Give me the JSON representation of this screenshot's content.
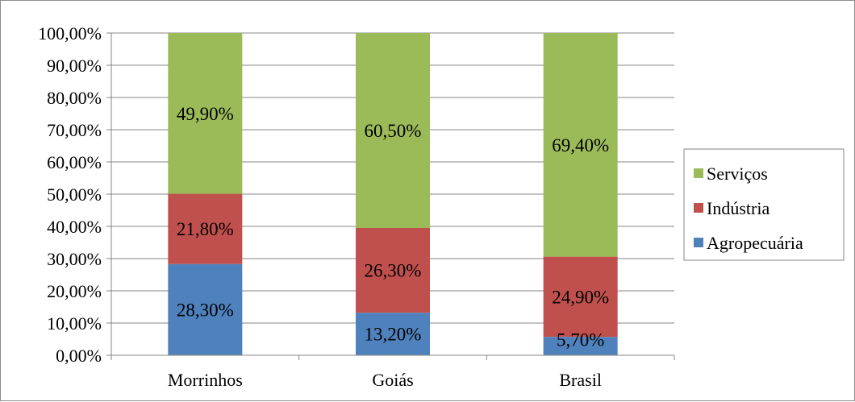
{
  "chart_data": {
    "type": "bar",
    "stacked": true,
    "categories": [
      "Morrinhos",
      "Goiás",
      "Brasil"
    ],
    "series": [
      {
        "name": "Agropecuária",
        "values": [
          28.3,
          13.2,
          5.7
        ],
        "labels": [
          "28,30%",
          "13,20%",
          "5,70%"
        ],
        "color": "#4f81bd"
      },
      {
        "name": "Indústria",
        "values": [
          21.8,
          26.3,
          24.9
        ],
        "labels": [
          "21,80%",
          "26,30%",
          "24,90%"
        ],
        "color": "#c0504d"
      },
      {
        "name": "Serviços",
        "values": [
          49.9,
          60.5,
          69.4
        ],
        "labels": [
          "49,90%",
          "60,50%",
          "69,40%"
        ],
        "color": "#9bbb59"
      }
    ],
    "ylim": [
      0,
      100
    ],
    "yticks": [
      0,
      10,
      20,
      30,
      40,
      50,
      60,
      70,
      80,
      90,
      100
    ],
    "ytick_labels": [
      "0,00%",
      "10,00%",
      "20,00%",
      "30,00%",
      "40,00%",
      "50,00%",
      "60,00%",
      "70,00%",
      "80,00%",
      "90,00%",
      "100,00%"
    ],
    "grid": true,
    "legend_position": "right",
    "legend_order": [
      "Serviços",
      "Indústria",
      "Agropecuária"
    ]
  }
}
